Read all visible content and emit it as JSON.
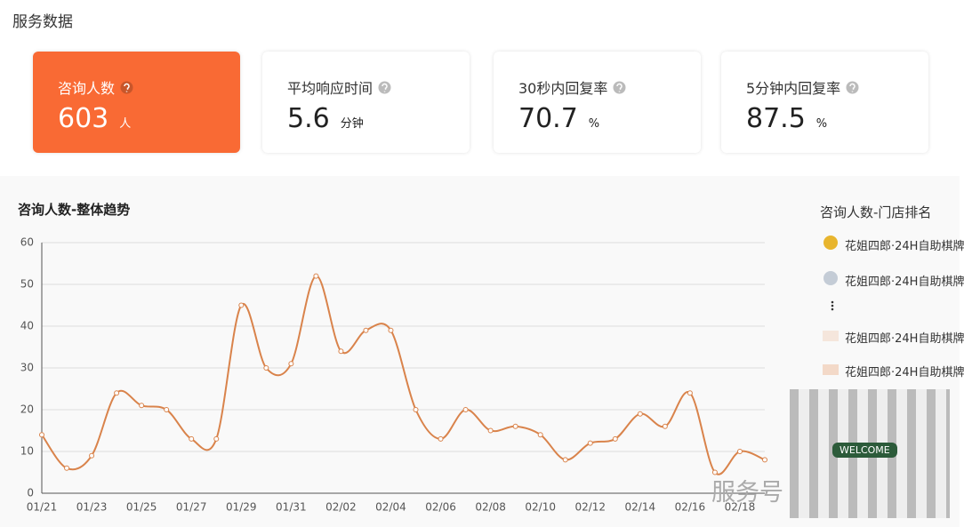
{
  "header": {
    "title": "服务数据"
  },
  "cards": [
    {
      "label": "咨询人数",
      "value": 603,
      "unit": "人"
    },
    {
      "label": "平均响应时间",
      "value": 5.6,
      "unit": "分钟"
    },
    {
      "label": "30秒内回复率",
      "value": 70.7,
      "unit": "%"
    },
    {
      "label": "5分钟内回复率",
      "value": 87.5,
      "unit": "%"
    }
  ],
  "chart_data": {
    "type": "line",
    "title": "咨询人数-整体趋势",
    "categories": [
      "01/21",
      null,
      "01/23",
      null,
      "01/25",
      null,
      "01/27",
      null,
      "01/29",
      null,
      "01/31",
      null,
      "02/02",
      null,
      "02/04",
      null,
      "02/06",
      null,
      "02/08",
      null,
      "02/10",
      null,
      "02/12",
      null,
      "02/14",
      null,
      "02/16",
      null,
      "02/18",
      null
    ],
    "values": [
      14,
      6,
      9,
      24,
      21,
      20,
      13,
      13,
      45,
      30,
      31,
      52,
      34,
      39,
      39,
      20,
      13,
      20,
      15,
      16,
      14,
      8,
      12,
      13,
      19,
      16,
      24,
      5,
      10,
      8
    ],
    "color": "#d9834b",
    "smooth": true,
    "ylim": [
      0,
      60
    ],
    "yticks": [
      0,
      10,
      20,
      30,
      40,
      50,
      60
    ],
    "grid": true
  },
  "ranking": {
    "title": "咨询人数-门店排名",
    "items": [
      "花姐四郎·24H自助棋牌",
      "花姐四郎·24H自助棋牌",
      "花姐四郎·24H自助棋牌",
      "花姐四郎·24H自助棋牌"
    ]
  },
  "watermark": {
    "text": "服务号",
    "image_text": "WELCOME"
  }
}
